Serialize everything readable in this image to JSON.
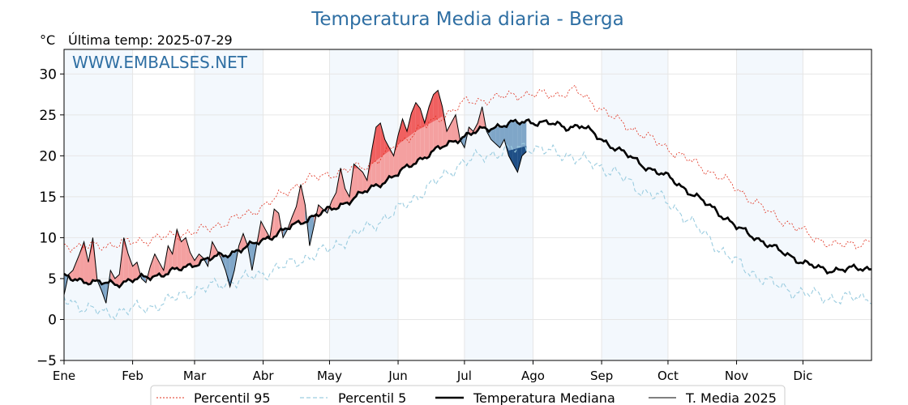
{
  "chart_data": {
    "type": "line",
    "title": "Temperatura Media diaria - Berga",
    "unit": "°C",
    "last_temp": "Última temp: 2025-07-29",
    "watermark": "WWW.EMBALSES.NET",
    "ylim": [
      -5,
      33
    ],
    "y_ticks": [
      "30",
      "25",
      "20",
      "15",
      "10",
      "5",
      "0",
      "−5"
    ],
    "y_tick_values": [
      30,
      25,
      20,
      15,
      10,
      5,
      0,
      -5
    ],
    "x_ticks": [
      "Ene",
      "Feb",
      "Mar",
      "Abr",
      "May",
      "Jun",
      "Jul",
      "Ago",
      "Sep",
      "Oct",
      "Nov",
      "Dic"
    ],
    "x_tick_days": [
      1,
      32,
      60,
      91,
      121,
      152,
      182,
      213,
      244,
      274,
      305,
      335
    ],
    "x_range_days": [
      1,
      366
    ],
    "grid": true,
    "legend_position": "bottom-center",
    "colors": {
      "p95": "#e0301e",
      "p5": "#9ccde0",
      "median": "#000000",
      "above": "#f4a0a0",
      "above_strong": "#f06060",
      "below": "#7fa6c8",
      "below_strong": "#1f4f86",
      "band": "#f3f8fd"
    },
    "series": [
      {
        "name": "Percentil 95",
        "anchors": [
          [
            1,
            9.2
          ],
          [
            8,
            8.8
          ],
          [
            15,
            9
          ],
          [
            25,
            9.2
          ],
          [
            35,
            9.6
          ],
          [
            45,
            10
          ],
          [
            55,
            10.5
          ],
          [
            65,
            11
          ],
          [
            75,
            12
          ],
          [
            85,
            13
          ],
          [
            95,
            14.5
          ],
          [
            110,
            17
          ],
          [
            125,
            18
          ],
          [
            140,
            19
          ],
          [
            150,
            21
          ],
          [
            160,
            23
          ],
          [
            170,
            24.5
          ],
          [
            182,
            26.5
          ],
          [
            195,
            27
          ],
          [
            205,
            27.5
          ],
          [
            215,
            27.5
          ],
          [
            225,
            27.5
          ],
          [
            232,
            28
          ],
          [
            240,
            26.5
          ],
          [
            250,
            24.5
          ],
          [
            260,
            23
          ],
          [
            270,
            21.5
          ],
          [
            280,
            20
          ],
          [
            290,
            18.5
          ],
          [
            300,
            17
          ],
          [
            310,
            15
          ],
          [
            320,
            13
          ],
          [
            330,
            11.5
          ],
          [
            340,
            10
          ],
          [
            350,
            9
          ],
          [
            366,
            9.5
          ]
        ],
        "amp": 0.7
      },
      {
        "name": "Percentil 5",
        "anchors": [
          [
            1,
            2.5
          ],
          [
            10,
            1.5
          ],
          [
            20,
            0.7
          ],
          [
            30,
            1.2
          ],
          [
            40,
            1.5
          ],
          [
            50,
            2.5
          ],
          [
            60,
            3.5
          ],
          [
            70,
            4.2
          ],
          [
            80,
            4.8
          ],
          [
            90,
            5.5
          ],
          [
            100,
            6.5
          ],
          [
            110,
            7.5
          ],
          [
            120,
            8.5
          ],
          [
            130,
            10
          ],
          [
            140,
            11.5
          ],
          [
            150,
            13
          ],
          [
            160,
            15
          ],
          [
            170,
            17
          ],
          [
            180,
            19
          ],
          [
            190,
            20
          ],
          [
            200,
            20.5
          ],
          [
            210,
            21.2
          ],
          [
            220,
            20.5
          ],
          [
            230,
            20
          ],
          [
            240,
            19
          ],
          [
            250,
            18
          ],
          [
            260,
            16
          ],
          [
            270,
            15
          ],
          [
            280,
            13
          ],
          [
            290,
            10.5
          ],
          [
            300,
            8
          ],
          [
            310,
            6
          ],
          [
            320,
            4.5
          ],
          [
            330,
            3.5
          ],
          [
            340,
            3
          ],
          [
            350,
            2.5
          ],
          [
            366,
            2.8
          ]
        ],
        "amp": 0.9
      },
      {
        "name": "Temperatura Mediana",
        "anchors": [
          [
            1,
            5.2
          ],
          [
            15,
            4.5
          ],
          [
            25,
            4.4
          ],
          [
            35,
            5
          ],
          [
            45,
            5.5
          ],
          [
            55,
            6.3
          ],
          [
            65,
            7.3
          ],
          [
            75,
            8
          ],
          [
            85,
            9
          ],
          [
            95,
            10.2
          ],
          [
            105,
            11.5
          ],
          [
            115,
            12.8
          ],
          [
            125,
            13.8
          ],
          [
            135,
            15.3
          ],
          [
            145,
            16.8
          ],
          [
            152,
            17.8
          ],
          [
            160,
            19.3
          ],
          [
            170,
            20.8
          ],
          [
            180,
            22.2
          ],
          [
            190,
            23.2
          ],
          [
            200,
            23.8
          ],
          [
            210,
            24.2
          ],
          [
            220,
            24
          ],
          [
            228,
            23.5
          ],
          [
            235,
            23.7
          ],
          [
            245,
            21.8
          ],
          [
            255,
            20.2
          ],
          [
            265,
            18.5
          ],
          [
            275,
            17.3
          ],
          [
            285,
            15.3
          ],
          [
            295,
            13.5
          ],
          [
            305,
            11.3
          ],
          [
            315,
            9.8
          ],
          [
            325,
            8.3
          ],
          [
            335,
            7
          ],
          [
            345,
            6
          ],
          [
            355,
            6.2
          ],
          [
            366,
            6.2
          ]
        ],
        "amp": 0.45
      },
      {
        "name": "T. Media 2025",
        "days": [
          1,
          3,
          5,
          8,
          10,
          12,
          14,
          16,
          18,
          20,
          22,
          24,
          26,
          28,
          30,
          32,
          34,
          36,
          38,
          40,
          42,
          44,
          46,
          48,
          50,
          52,
          54,
          56,
          58,
          60,
          62,
          64,
          66,
          68,
          70,
          72,
          74,
          76,
          78,
          80,
          82,
          84,
          86,
          88,
          90,
          92,
          94,
          96,
          98,
          100,
          102,
          104,
          106,
          108,
          110,
          112,
          114,
          116,
          118,
          120,
          122,
          124,
          126,
          128,
          130,
          132,
          134,
          136,
          138,
          140,
          142,
          144,
          146,
          148,
          150,
          152,
          154,
          156,
          158,
          160,
          162,
          164,
          166,
          168,
          170,
          172,
          174,
          176,
          178,
          180,
          182,
          184,
          186,
          188,
          190,
          192,
          194,
          196,
          198,
          200,
          202,
          204,
          206,
          208,
          210
        ],
        "values": [
          3,
          5.5,
          6,
          8,
          9.5,
          7,
          10,
          4.8,
          3.5,
          2,
          6,
          5,
          5.5,
          10,
          8,
          6.5,
          7,
          5,
          4.5,
          6.5,
          8,
          7,
          6,
          9,
          8,
          11,
          9.5,
          10,
          8.2,
          7.2,
          8,
          7.5,
          6.5,
          9.5,
          8.5,
          7.5,
          6,
          4,
          6,
          9,
          10.5,
          9,
          6,
          9,
          12,
          11,
          10,
          13.5,
          13,
          10,
          11,
          12.5,
          13.8,
          16.5,
          14,
          9,
          11.5,
          14,
          13.5,
          13,
          14.5,
          15.5,
          18.5,
          16,
          15,
          19,
          18.5,
          18,
          17,
          20.5,
          23.5,
          24,
          22,
          21,
          20,
          22.5,
          24.5,
          23,
          25.2,
          26.5,
          25.8,
          24,
          26,
          27.5,
          28,
          26,
          23,
          24,
          25,
          22,
          21,
          23.5,
          23,
          24,
          26,
          23,
          22,
          21.5,
          21,
          22,
          20,
          19,
          18,
          20,
          20.5
        ]
      }
    ]
  }
}
